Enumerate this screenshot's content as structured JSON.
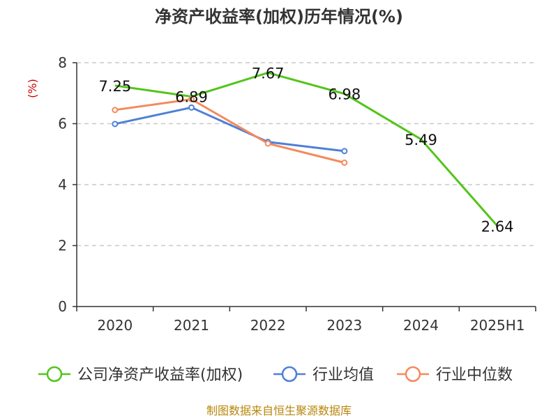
{
  "chart_data": {
    "type": "line",
    "title": "净资产收益率(加权)历年情况(%)",
    "ylabel": "(%)",
    "ylim": [
      0,
      8
    ],
    "yticks": [
      0,
      2,
      4,
      6,
      8
    ],
    "categories": [
      "2020",
      "2021",
      "2022",
      "2023",
      "2024",
      "2025H1"
    ],
    "grid": true,
    "legend_position": "bottom",
    "series": [
      {
        "name": "公司净资产收益率(加权)",
        "color": "#52c41a",
        "values": [
          7.25,
          6.89,
          7.67,
          6.98,
          5.49,
          2.64
        ],
        "labels": [
          "7.25",
          "6.89",
          "7.67",
          "6.98",
          "5.49",
          "2.64"
        ]
      },
      {
        "name": "行业均值",
        "color": "#4e7fd8",
        "values": [
          5.99,
          6.53,
          5.4,
          5.1,
          null,
          null
        ]
      },
      {
        "name": "行业中位数",
        "color": "#f5895a",
        "values": [
          6.45,
          6.8,
          5.35,
          4.72,
          null,
          null
        ]
      }
    ]
  },
  "source": "制图数据来自恒生聚源数据库"
}
